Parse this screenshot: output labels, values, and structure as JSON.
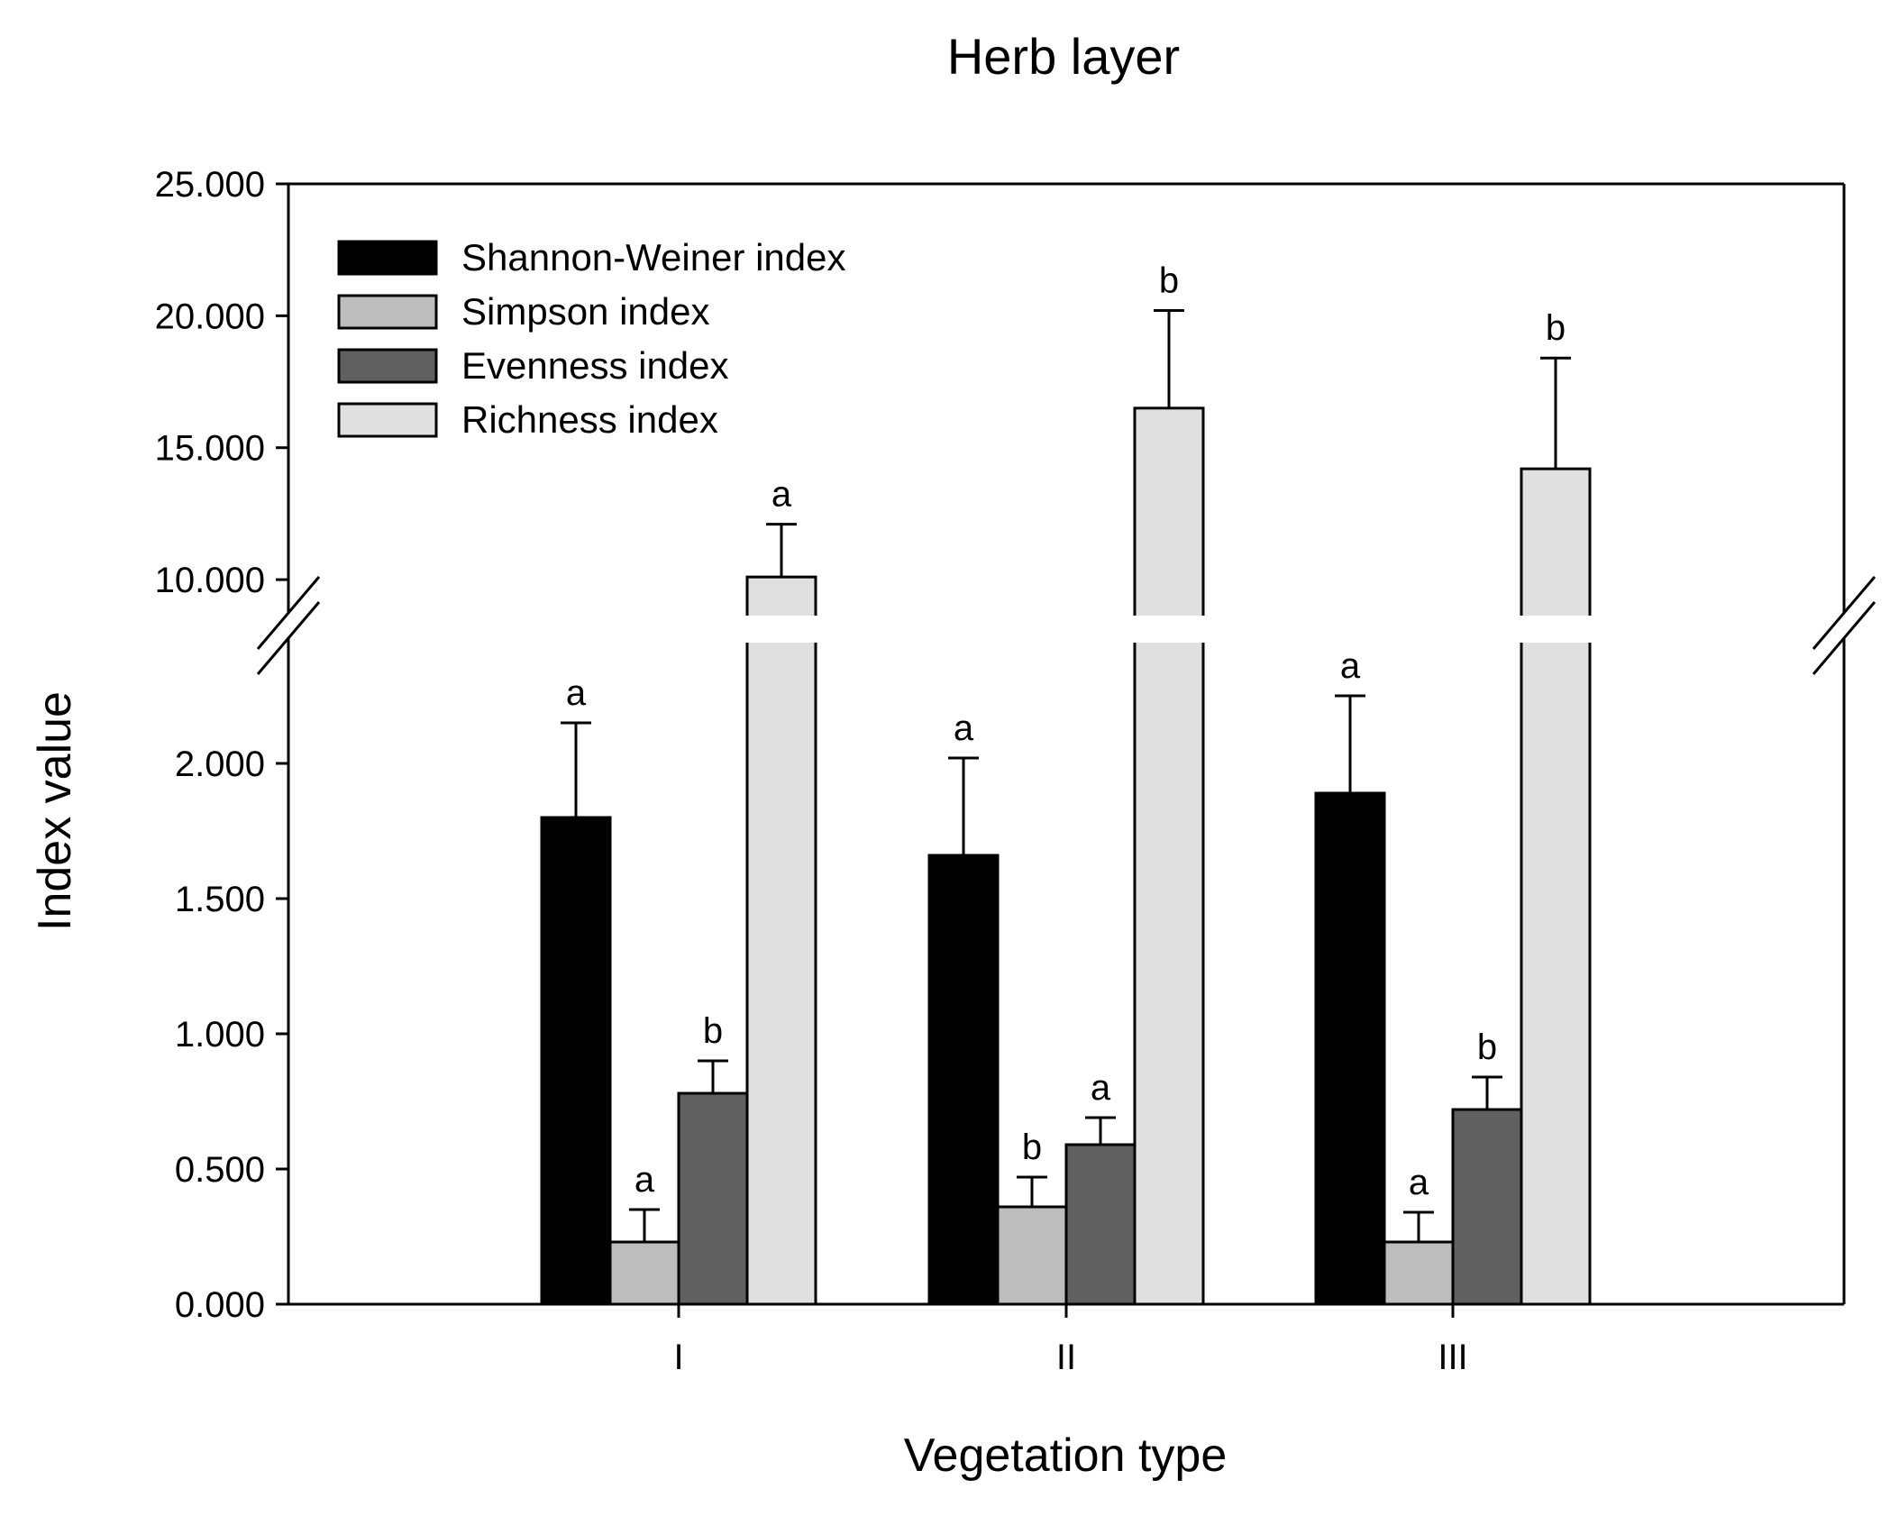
{
  "chart_data": {
    "type": "bar",
    "title": "Herb layer",
    "xlabel": "Vegetation type",
    "ylabel": "Index value",
    "categories": [
      "I",
      "II",
      "III"
    ],
    "y_axis_broken": true,
    "lower_segment": {
      "ylim": [
        0,
        2.5
      ],
      "ticks": [
        "0.000",
        "0.500",
        "1.000",
        "1.500",
        "2.000"
      ]
    },
    "upper_segment": {
      "ylim": [
        8.5,
        25
      ],
      "ticks": [
        "10.000",
        "15.000",
        "20.000",
        "25.000"
      ]
    },
    "series": [
      {
        "name": "Shannon-Weiner index",
        "color": "#000000",
        "values": [
          1.8,
          1.66,
          1.89
        ],
        "errors": [
          0.35,
          0.36,
          0.36
        ],
        "letters": [
          "a",
          "a",
          "a"
        ]
      },
      {
        "name": "Simpson index",
        "color": "#bdbdbd",
        "values": [
          0.23,
          0.36,
          0.23
        ],
        "errors": [
          0.12,
          0.11,
          0.11
        ],
        "letters": [
          "a",
          "b",
          "a"
        ]
      },
      {
        "name": "Evenness index",
        "color": "#606060",
        "values": [
          0.78,
          0.59,
          0.72
        ],
        "errors": [
          0.12,
          0.1,
          0.12
        ],
        "letters": [
          "b",
          "a",
          "b"
        ]
      },
      {
        "name": "Richness index",
        "color": "#e0e0e0",
        "values": [
          10.1,
          16.5,
          14.2
        ],
        "errors": [
          2.0,
          3.7,
          4.2
        ],
        "letters": [
          "a",
          "b",
          "b"
        ]
      }
    ]
  }
}
